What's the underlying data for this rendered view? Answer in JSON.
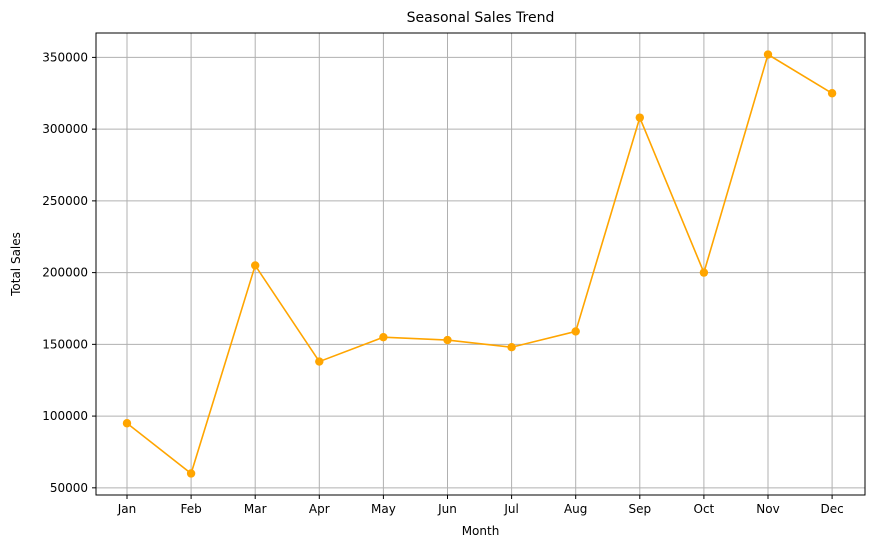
{
  "chart_data": {
    "type": "line",
    "title": "Seasonal Sales Trend",
    "xlabel": "Month",
    "ylabel": "Total Sales",
    "categories": [
      "Jan",
      "Feb",
      "Mar",
      "Apr",
      "May",
      "Jun",
      "Jul",
      "Aug",
      "Sep",
      "Oct",
      "Nov",
      "Dec"
    ],
    "series": [
      {
        "values": [
          95000,
          60000,
          205000,
          138000,
          155000,
          153000,
          148000,
          159000,
          308000,
          200000,
          352000,
          325000
        ]
      }
    ],
    "yticks": [
      50000,
      100000,
      150000,
      200000,
      250000,
      300000,
      350000
    ],
    "ylim": [
      45000,
      367000
    ],
    "grid": true,
    "colors": {
      "line": "#ffa500",
      "grid": "#b0b0b0",
      "axis": "#000000"
    }
  }
}
